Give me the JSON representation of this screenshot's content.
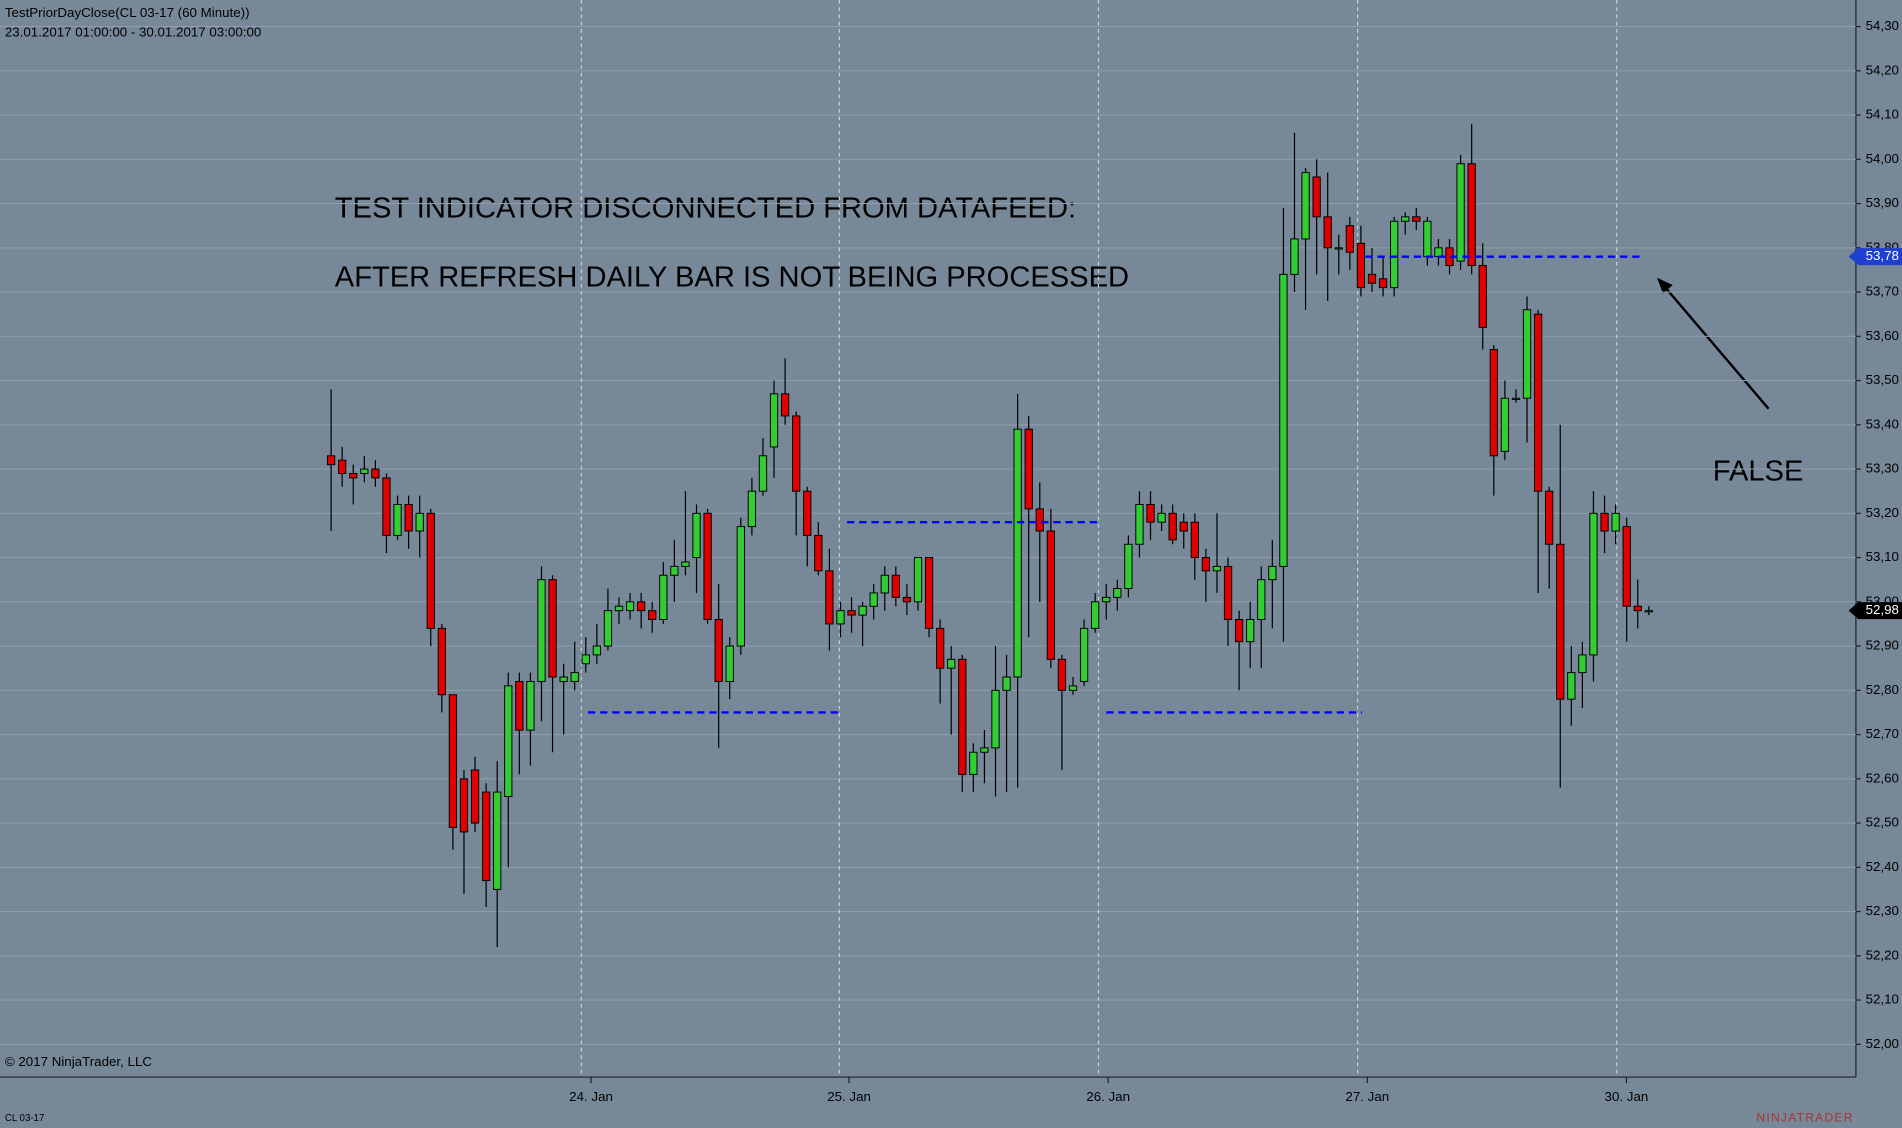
{
  "chart_data": {
    "type": "candlestick",
    "title": "TestPriorDayClose(CL 03-17 (60 Minute))",
    "subtitle": "23.01.2017 01:00:00 - 30.01.2017 03:00:00",
    "annotations": [
      "TEST INDICATOR DISCONNECTED FROM DATAFEED:",
      "AFTER REFRESH DAILY BAR IS NOT BEING PROCESSED",
      "FALSE"
    ],
    "copyright": "© 2017 NinjaTrader, LLC",
    "instrument": "CL 03-17",
    "brand": "NINJATRADER",
    "up_color": "#32cd32",
    "down_color": "#e00000",
    "level_color": "#0000ff",
    "grid": true,
    "ylim": [
      51.926,
      54.36
    ],
    "yticks": [
      {
        "value": 52.0,
        "label": "52,00"
      },
      {
        "value": 52.1,
        "label": "52,10"
      },
      {
        "value": 52.2,
        "label": "52,20"
      },
      {
        "value": 52.3,
        "label": "52,30"
      },
      {
        "value": 52.4,
        "label": "52,40"
      },
      {
        "value": 52.5,
        "label": "52,50"
      },
      {
        "value": 52.6,
        "label": "52,60"
      },
      {
        "value": 52.7,
        "label": "52,70"
      },
      {
        "value": 52.8,
        "label": "52,80"
      },
      {
        "value": 52.9,
        "label": "52,90"
      },
      {
        "value": 53.0,
        "label": "53,00"
      },
      {
        "value": 53.1,
        "label": "53,10"
      },
      {
        "value": 53.2,
        "label": "53,20"
      },
      {
        "value": 53.3,
        "label": "53,30"
      },
      {
        "value": 53.4,
        "label": "53,40"
      },
      {
        "value": 53.5,
        "label": "53,50"
      },
      {
        "value": 53.6,
        "label": "53,60"
      },
      {
        "value": 53.7,
        "label": "53,70"
      },
      {
        "value": 53.8,
        "label": "53,80"
      },
      {
        "value": 53.9,
        "label": "53,90"
      },
      {
        "value": 54.0,
        "label": "54,00"
      },
      {
        "value": 54.1,
        "label": "54,10"
      },
      {
        "value": 54.2,
        "label": "54,20"
      },
      {
        "value": 54.3,
        "label": "54,30"
      }
    ],
    "xlim": [
      -29.9,
      137.7
    ],
    "xticks": [
      {
        "value": 22.6,
        "label": "24. Jan"
      },
      {
        "value": 45.9,
        "label": "25. Jan"
      },
      {
        "value": 69.3,
        "label": "26. Jan"
      },
      {
        "value": 92.7,
        "label": "27. Jan"
      },
      {
        "value": 116.1,
        "label": "30. Jan"
      }
    ],
    "ohlc": [
      [
        53.33,
        53.48,
        53.16,
        53.31
      ],
      [
        53.32,
        53.35,
        53.26,
        53.29
      ],
      [
        53.29,
        53.31,
        53.22,
        53.28
      ],
      [
        53.29,
        53.33,
        53.27,
        53.3
      ],
      [
        53.3,
        53.32,
        53.26,
        53.28
      ],
      [
        53.28,
        53.29,
        53.11,
        53.15
      ],
      [
        53.15,
        53.24,
        53.14,
        53.22
      ],
      [
        53.22,
        53.24,
        53.12,
        53.16
      ],
      [
        53.16,
        53.24,
        53.1,
        53.2
      ],
      [
        53.2,
        53.21,
        52.9,
        52.94
      ],
      [
        52.94,
        52.95,
        52.75,
        52.79
      ],
      [
        52.79,
        52.79,
        52.44,
        52.49
      ],
      [
        52.6,
        52.62,
        52.34,
        52.48
      ],
      [
        52.62,
        52.65,
        52.48,
        52.5
      ],
      [
        52.57,
        52.59,
        52.31,
        52.37
      ],
      [
        52.35,
        52.64,
        52.22,
        52.57
      ],
      [
        52.56,
        52.84,
        52.4,
        52.81
      ],
      [
        52.82,
        52.84,
        52.61,
        52.71
      ],
      [
        52.71,
        52.84,
        52.63,
        52.82
      ],
      [
        52.82,
        53.08,
        52.73,
        53.05
      ],
      [
        53.05,
        53.06,
        52.66,
        52.83
      ],
      [
        52.82,
        52.86,
        52.7,
        52.83
      ],
      [
        52.82,
        52.91,
        52.8,
        52.84
      ],
      [
        52.86,
        52.92,
        52.84,
        52.88
      ],
      [
        52.88,
        52.95,
        52.86,
        52.9
      ],
      [
        52.9,
        53.03,
        52.89,
        52.98
      ],
      [
        52.98,
        53.01,
        52.95,
        52.99
      ],
      [
        52.98,
        53.02,
        52.96,
        53.0
      ],
      [
        53.0,
        53.02,
        52.94,
        52.98
      ],
      [
        52.98,
        53.0,
        52.93,
        52.96
      ],
      [
        52.96,
        53.09,
        52.95,
        53.06
      ],
      [
        53.06,
        53.14,
        53.0,
        53.08
      ],
      [
        53.08,
        53.25,
        53.06,
        53.09
      ],
      [
        53.1,
        53.22,
        53.02,
        53.2
      ],
      [
        53.2,
        53.21,
        52.95,
        52.96
      ],
      [
        52.96,
        53.04,
        52.67,
        52.82
      ],
      [
        52.82,
        52.92,
        52.78,
        52.9
      ],
      [
        52.9,
        53.19,
        52.88,
        53.17
      ],
      [
        53.17,
        53.28,
        53.15,
        53.25
      ],
      [
        53.25,
        53.37,
        53.24,
        53.33
      ],
      [
        53.35,
        53.5,
        53.28,
        53.47
      ],
      [
        53.47,
        53.55,
        53.4,
        53.42
      ],
      [
        53.42,
        53.43,
        53.15,
        53.25
      ],
      [
        53.25,
        53.26,
        53.08,
        53.15
      ],
      [
        53.15,
        53.18,
        53.06,
        53.07
      ],
      [
        53.07,
        53.12,
        52.89,
        52.95
      ],
      [
        52.95,
        53.0,
        52.92,
        52.98
      ],
      [
        52.98,
        53.01,
        52.93,
        52.97
      ],
      [
        52.97,
        53.0,
        52.9,
        52.99
      ],
      [
        52.99,
        53.04,
        52.96,
        53.02
      ],
      [
        53.02,
        53.08,
        52.98,
        53.06
      ],
      [
        53.06,
        53.08,
        52.99,
        53.01
      ],
      [
        53.01,
        53.04,
        52.97,
        53.0
      ],
      [
        53.0,
        53.1,
        52.98,
        53.1
      ],
      [
        53.1,
        53.1,
        52.92,
        52.94
      ],
      [
        52.94,
        52.96,
        52.77,
        52.85
      ],
      [
        52.85,
        52.9,
        52.7,
        52.87
      ],
      [
        52.87,
        52.88,
        52.57,
        52.61
      ],
      [
        52.61,
        52.68,
        52.57,
        52.66
      ],
      [
        52.66,
        52.71,
        52.59,
        52.67
      ],
      [
        52.67,
        52.9,
        52.56,
        52.8
      ],
      [
        52.8,
        52.88,
        52.57,
        52.83
      ],
      [
        52.83,
        53.47,
        52.58,
        53.39
      ],
      [
        53.39,
        53.42,
        52.92,
        53.21
      ],
      [
        53.21,
        53.27,
        53.0,
        53.16
      ],
      [
        53.16,
        53.21,
        52.85,
        52.87
      ],
      [
        52.87,
        52.88,
        52.62,
        52.8
      ],
      [
        52.8,
        52.83,
        52.79,
        52.81
      ],
      [
        52.82,
        52.96,
        52.81,
        52.94
      ],
      [
        52.94,
        53.02,
        52.93,
        53.0
      ],
      [
        53.0,
        53.04,
        52.96,
        53.01
      ],
      [
        53.01,
        53.05,
        52.98,
        53.03
      ],
      [
        53.03,
        53.15,
        53.01,
        53.13
      ],
      [
        53.13,
        53.25,
        53.1,
        53.22
      ],
      [
        53.22,
        53.25,
        53.14,
        53.18
      ],
      [
        53.18,
        53.22,
        53.16,
        53.2
      ],
      [
        53.2,
        53.22,
        53.13,
        53.14
      ],
      [
        53.18,
        53.2,
        53.12,
        53.16
      ],
      [
        53.18,
        53.2,
        53.05,
        53.1
      ],
      [
        53.1,
        53.12,
        53.0,
        53.07
      ],
      [
        53.07,
        53.2,
        53.02,
        53.08
      ],
      [
        53.08,
        53.1,
        52.9,
        52.96
      ],
      [
        52.96,
        52.98,
        52.8,
        52.91
      ],
      [
        52.91,
        53.0,
        52.85,
        52.96
      ],
      [
        52.96,
        53.08,
        52.85,
        53.05
      ],
      [
        53.05,
        53.14,
        52.94,
        53.08
      ],
      [
        53.08,
        53.89,
        52.91,
        53.74
      ],
      [
        53.74,
        54.06,
        53.7,
        53.82
      ],
      [
        53.82,
        53.98,
        53.66,
        53.97
      ],
      [
        53.96,
        54.0,
        53.74,
        53.87
      ],
      [
        53.87,
        53.97,
        53.68,
        53.8
      ],
      [
        53.8,
        53.83,
        53.74,
        53.8
      ],
      [
        53.85,
        53.87,
        53.75,
        53.79
      ],
      [
        53.81,
        53.85,
        53.69,
        53.71
      ],
      [
        53.74,
        53.8,
        53.7,
        53.72
      ],
      [
        53.73,
        53.78,
        53.69,
        53.71
      ],
      [
        53.71,
        53.87,
        53.69,
        53.86
      ],
      [
        53.86,
        53.88,
        53.83,
        53.87
      ],
      [
        53.87,
        53.89,
        53.84,
        53.86
      ],
      [
        53.78,
        53.87,
        53.76,
        53.86
      ],
      [
        53.78,
        53.82,
        53.76,
        53.8
      ],
      [
        53.8,
        53.82,
        53.74,
        53.76
      ],
      [
        53.77,
        54.01,
        53.75,
        53.99
      ],
      [
        53.99,
        54.08,
        53.74,
        53.76
      ],
      [
        53.76,
        53.81,
        53.57,
        53.62
      ],
      [
        53.57,
        53.58,
        53.24,
        53.33
      ],
      [
        53.34,
        53.5,
        53.32,
        53.46
      ],
      [
        53.46,
        53.48,
        53.45,
        53.46
      ],
      [
        53.46,
        53.69,
        53.36,
        53.66
      ],
      [
        53.65,
        53.66,
        53.02,
        53.25
      ],
      [
        53.25,
        53.26,
        53.03,
        53.13
      ],
      [
        53.13,
        53.4,
        52.58,
        52.78
      ],
      [
        52.78,
        52.9,
        52.72,
        52.84
      ],
      [
        52.84,
        52.91,
        52.76,
        52.88
      ],
      [
        52.88,
        53.25,
        52.82,
        53.2
      ],
      [
        53.2,
        53.24,
        53.11,
        53.16
      ],
      [
        53.16,
        53.22,
        53.13,
        53.2
      ],
      [
        53.17,
        53.19,
        52.91,
        52.99
      ],
      [
        52.99,
        53.05,
        52.94,
        52.98
      ],
      [
        52.98,
        52.99,
        52.97,
        52.98
      ]
    ],
    "levels": [
      {
        "value": 52.75,
        "start": 23.2,
        "end": 46.2
      },
      {
        "value": 53.18,
        "start": 46.6,
        "end": 69.6
      },
      {
        "value": 52.75,
        "start": 70.0,
        "end": 93.1
      },
      {
        "value": 53.78,
        "start": 93.4,
        "end": 118.5
      }
    ],
    "price_markers": [
      {
        "value": 53.78,
        "label": "53,78",
        "color": "#1f3fd0"
      },
      {
        "value": 52.98,
        "label": "52,98",
        "color": "#000000"
      }
    ]
  }
}
